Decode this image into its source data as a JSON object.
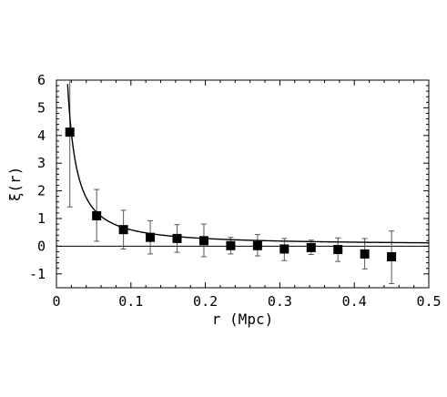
{
  "chart_data": {
    "type": "scatter",
    "title": "",
    "xlabel": "r (Mpc)",
    "ylabel": "ξ(r)",
    "xlim": [
      0,
      0.5
    ],
    "ylim": [
      -1.5,
      6
    ],
    "x_ticks": [
      0,
      0.1,
      0.2,
      0.3,
      0.4,
      0.5
    ],
    "x_tick_labels": [
      "0",
      "0.1",
      "0.2",
      "0.3",
      "0.4",
      "0.5"
    ],
    "y_ticks": [
      -1,
      0,
      1,
      2,
      3,
      4,
      5,
      6
    ],
    "y_tick_labels": [
      "-1",
      "0",
      "1",
      "2",
      "3",
      "4",
      "5",
      "6"
    ],
    "grid": false,
    "legend": "none",
    "series": [
      {
        "kind": "points_with_error_bars",
        "marker": "filled-square",
        "color": "#000000",
        "x": [
          0.018,
          0.054,
          0.09,
          0.126,
          0.162,
          0.198,
          0.234,
          0.27,
          0.306,
          0.342,
          0.378,
          0.414,
          0.45
        ],
        "y": [
          4.12,
          1.1,
          0.6,
          0.32,
          0.28,
          0.2,
          0.02,
          0.02,
          -0.1,
          -0.05,
          -0.12,
          -0.28,
          -0.38
        ],
        "err_low": [
          1.42,
          0.18,
          -0.1,
          -0.28,
          -0.22,
          -0.38,
          -0.28,
          -0.35,
          -0.52,
          -0.3,
          -0.55,
          -0.82,
          -1.35
        ],
        "err_high": [
          6.0,
          2.05,
          1.3,
          0.92,
          0.78,
          0.8,
          0.32,
          0.42,
          0.28,
          0.22,
          0.3,
          0.28,
          0.55
        ]
      },
      {
        "kind": "fit_curve",
        "color": "#000000",
        "x_start": 0.015,
        "x_end": 0.5,
        "amplitude": 0.0305,
        "exponent": 1.25,
        "offset": 0.05
      }
    ]
  }
}
